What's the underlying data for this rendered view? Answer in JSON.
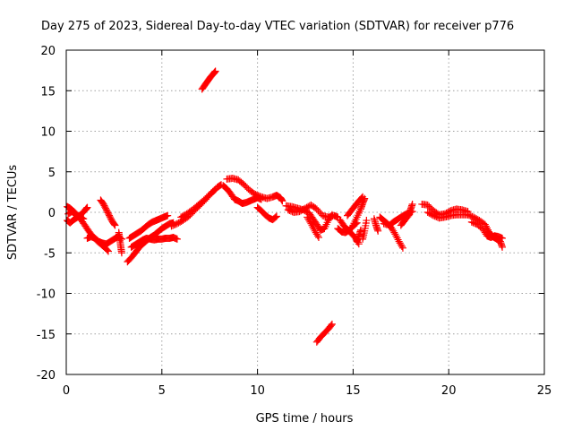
{
  "chart_data": {
    "type": "scatter",
    "title": "Day 275 of 2023, Sidereal Day-to-day VTEC variation (SDTVAR) for receiver p776",
    "xlabel": "GPS time / hours",
    "ylabel": "SDTVAR / TECUs",
    "xlim": [
      0,
      25
    ],
    "ylim": [
      -20,
      20
    ],
    "xticks": [
      0,
      5,
      10,
      15,
      20,
      25
    ],
    "yticks": [
      -20,
      -15,
      -10,
      -5,
      0,
      5,
      10,
      15,
      20
    ],
    "xtick_labels": [
      "0",
      "5",
      "10",
      "15",
      "20",
      "25"
    ],
    "ytick_labels": [
      "-20",
      "-15",
      "-10",
      "-5",
      "0",
      "5",
      "10",
      "15",
      "20"
    ],
    "grid": true,
    "marker": "plus",
    "color": "#ff0000",
    "series": [
      {
        "name": "arc-1",
        "points": [
          [
            0.05,
            0.7
          ],
          [
            0.2,
            0.5
          ],
          [
            0.4,
            0.1
          ],
          [
            0.6,
            -0.4
          ],
          [
            0.8,
            -1.0
          ],
          [
            1.0,
            -1.7
          ],
          [
            1.2,
            -2.4
          ],
          [
            1.4,
            -3.0
          ],
          [
            1.6,
            -3.5
          ],
          [
            1.8,
            -3.9
          ],
          [
            2.0,
            -4.3
          ],
          [
            2.2,
            -4.8
          ]
        ]
      },
      {
        "name": "arc-2",
        "points": [
          [
            0.05,
            -1.0
          ],
          [
            0.2,
            -1.3
          ],
          [
            0.4,
            -0.9
          ],
          [
            0.6,
            -0.6
          ],
          [
            0.8,
            -0.2
          ],
          [
            1.0,
            0.3
          ],
          [
            1.1,
            0.6
          ]
        ]
      },
      {
        "name": "arc-3",
        "points": [
          [
            0.1,
            -0.2
          ],
          [
            0.3,
            0.1
          ],
          [
            0.5,
            -0.3
          ],
          [
            0.7,
            -0.5
          ],
          [
            0.9,
            -0.8
          ]
        ]
      },
      {
        "name": "arc-4",
        "points": [
          [
            1.1,
            -3.2
          ],
          [
            1.3,
            -3.0
          ],
          [
            1.5,
            -3.2
          ],
          [
            1.7,
            -3.6
          ],
          [
            1.9,
            -3.8
          ],
          [
            2.1,
            -3.9
          ],
          [
            2.3,
            -3.6
          ],
          [
            2.5,
            -3.3
          ],
          [
            2.7,
            -3.0
          ],
          [
            2.9,
            -3.3
          ]
        ]
      },
      {
        "name": "arc-5",
        "points": [
          [
            1.8,
            1.5
          ],
          [
            1.95,
            1.0
          ],
          [
            2.1,
            0.3
          ],
          [
            2.25,
            -0.4
          ],
          [
            2.4,
            -1.1
          ],
          [
            2.55,
            -1.6
          ]
        ]
      },
      {
        "name": "arc-6",
        "points": [
          [
            2.75,
            -2.5
          ],
          [
            2.8,
            -3.3
          ],
          [
            2.85,
            -4.2
          ],
          [
            2.9,
            -5.0
          ]
        ]
      },
      {
        "name": "arc-7",
        "points": [
          [
            3.2,
            -6.1
          ],
          [
            3.4,
            -5.6
          ],
          [
            3.6,
            -5.0
          ],
          [
            3.8,
            -4.4
          ],
          [
            4.0,
            -3.9
          ],
          [
            4.2,
            -3.5
          ],
          [
            4.4,
            -3.1
          ],
          [
            4.6,
            -2.8
          ],
          [
            4.8,
            -2.4
          ],
          [
            5.0,
            -2.0
          ],
          [
            5.2,
            -1.7
          ],
          [
            5.4,
            -1.4
          ],
          [
            5.6,
            -1.3
          ]
        ]
      },
      {
        "name": "arc-8",
        "points": [
          [
            3.3,
            -3.2
          ],
          [
            3.5,
            -2.9
          ],
          [
            3.7,
            -2.6
          ],
          [
            3.9,
            -2.3
          ],
          [
            4.1,
            -1.9
          ],
          [
            4.3,
            -1.5
          ],
          [
            4.5,
            -1.2
          ],
          [
            4.7,
            -1.0
          ],
          [
            4.9,
            -0.8
          ],
          [
            5.1,
            -0.6
          ],
          [
            5.3,
            -0.4
          ]
        ]
      },
      {
        "name": "arc-9",
        "points": [
          [
            3.4,
            -4.3
          ],
          [
            3.6,
            -4.0
          ],
          [
            3.8,
            -3.7
          ],
          [
            4.0,
            -3.4
          ],
          [
            4.2,
            -3.2
          ],
          [
            4.4,
            -3.3
          ],
          [
            4.6,
            -3.4
          ],
          [
            4.8,
            -3.3
          ],
          [
            5.0,
            -3.3
          ],
          [
            5.2,
            -3.2
          ],
          [
            5.4,
            -3.2
          ],
          [
            5.6,
            -3.1
          ],
          [
            5.8,
            -3.3
          ]
        ]
      },
      {
        "name": "arc-10",
        "points": [
          [
            5.5,
            -1.7
          ],
          [
            5.8,
            -1.4
          ],
          [
            6.1,
            -1.0
          ],
          [
            6.4,
            -0.5
          ],
          [
            6.7,
            0.2
          ],
          [
            7.0,
            0.9
          ],
          [
            7.3,
            1.6
          ],
          [
            7.6,
            2.4
          ],
          [
            7.9,
            3.1
          ],
          [
            8.1,
            3.4
          ]
        ]
      },
      {
        "name": "arc-11",
        "points": [
          [
            6.0,
            -0.6
          ],
          [
            6.3,
            -0.2
          ],
          [
            6.6,
            0.3
          ],
          [
            6.9,
            0.9
          ],
          [
            7.2,
            1.5
          ],
          [
            7.5,
            2.2
          ],
          [
            7.8,
            2.8
          ]
        ]
      },
      {
        "name": "arc-12",
        "points": [
          [
            8.2,
            3.3
          ],
          [
            8.4,
            2.9
          ],
          [
            8.6,
            2.3
          ],
          [
            8.8,
            1.6
          ],
          [
            9.0,
            1.4
          ],
          [
            9.2,
            1.1
          ],
          [
            9.4,
            1.2
          ],
          [
            9.6,
            1.4
          ],
          [
            9.8,
            1.6
          ],
          [
            10.0,
            1.8
          ],
          [
            10.2,
            1.6
          ]
        ]
      },
      {
        "name": "arc-13",
        "points": [
          [
            8.4,
            4.1
          ],
          [
            8.7,
            4.2
          ],
          [
            9.0,
            4.0
          ],
          [
            9.3,
            3.4
          ],
          [
            9.6,
            2.7
          ],
          [
            9.9,
            2.2
          ],
          [
            10.2,
            1.9
          ],
          [
            10.5,
            1.7
          ],
          [
            10.8,
            1.9
          ],
          [
            11.0,
            2.1
          ],
          [
            11.2,
            1.8
          ],
          [
            11.3,
            1.4
          ]
        ]
      },
      {
        "name": "arc-14",
        "points": [
          [
            10.0,
            0.6
          ],
          [
            10.2,
            0.2
          ],
          [
            10.4,
            -0.3
          ],
          [
            10.6,
            -0.7
          ],
          [
            10.8,
            -0.9
          ],
          [
            11.0,
            -0.5
          ]
        ]
      },
      {
        "name": "arc-15",
        "points": [
          [
            11.5,
            0.8
          ],
          [
            11.8,
            0.7
          ],
          [
            12.1,
            0.5
          ],
          [
            12.4,
            0.3
          ],
          [
            12.7,
            -0.1
          ],
          [
            12.9,
            -0.8
          ],
          [
            13.1,
            -1.5
          ],
          [
            13.3,
            -2.2
          ],
          [
            13.5,
            -2.0
          ],
          [
            13.7,
            -1.0
          ],
          [
            13.9,
            -0.3
          ]
        ]
      },
      {
        "name": "arc-16",
        "points": [
          [
            11.6,
            0.3
          ],
          [
            11.9,
            0.0
          ],
          [
            12.2,
            0.1
          ],
          [
            12.5,
            0.5
          ],
          [
            12.8,
            0.9
          ],
          [
            13.1,
            0.4
          ],
          [
            13.4,
            -0.4
          ],
          [
            13.7,
            -0.6
          ],
          [
            14.0,
            -0.4
          ],
          [
            14.2,
            -0.6
          ]
        ]
      },
      {
        "name": "arc-17",
        "points": [
          [
            12.6,
            -0.6
          ],
          [
            12.8,
            -1.4
          ],
          [
            13.0,
            -2.3
          ],
          [
            13.2,
            -3.1
          ]
        ]
      },
      {
        "name": "arc-18",
        "points": [
          [
            14.3,
            -0.9
          ],
          [
            14.5,
            -1.6
          ],
          [
            14.7,
            -2.1
          ],
          [
            14.9,
            -2.6
          ],
          [
            15.1,
            -3.1
          ],
          [
            15.3,
            -3.9
          ]
        ]
      },
      {
        "name": "arc-19",
        "points": [
          [
            14.2,
            -2.0
          ],
          [
            14.4,
            -2.4
          ],
          [
            14.6,
            -2.5
          ],
          [
            14.8,
            -2.2
          ],
          [
            15.0,
            -1.7
          ],
          [
            15.2,
            -1.3
          ]
        ]
      },
      {
        "name": "arc-20",
        "points": [
          [
            15.0,
            -1.6
          ],
          [
            15.2,
            -0.6
          ],
          [
            15.4,
            0.4
          ],
          [
            15.5,
            1.1
          ],
          [
            15.6,
            1.7
          ]
        ]
      },
      {
        "name": "arc-21",
        "points": [
          [
            14.7,
            -0.4
          ],
          [
            14.9,
            0.2
          ],
          [
            15.1,
            0.8
          ],
          [
            15.3,
            1.4
          ],
          [
            15.5,
            1.9
          ]
        ]
      },
      {
        "name": "arc-22",
        "points": [
          [
            15.5,
            -3.3
          ],
          [
            15.6,
            -2.3
          ],
          [
            15.7,
            -1.0
          ]
        ]
      },
      {
        "name": "arc-23",
        "points": [
          [
            15.2,
            -3.6
          ],
          [
            15.3,
            -2.9
          ],
          [
            15.4,
            -2.2
          ]
        ]
      },
      {
        "name": "arc-24",
        "points": [
          [
            16.1,
            -0.8
          ],
          [
            16.2,
            -1.6
          ],
          [
            16.3,
            -2.3
          ]
        ]
      },
      {
        "name": "arc-25",
        "points": [
          [
            16.4,
            -0.6
          ],
          [
            16.6,
            -1.0
          ],
          [
            16.8,
            -1.4
          ],
          [
            17.0,
            -1.9
          ],
          [
            17.2,
            -2.7
          ],
          [
            17.4,
            -3.6
          ],
          [
            17.6,
            -4.4
          ]
        ]
      },
      {
        "name": "arc-26",
        "points": [
          [
            16.6,
            -1.4
          ],
          [
            16.9,
            -1.6
          ],
          [
            17.1,
            -1.2
          ],
          [
            17.3,
            -0.9
          ],
          [
            17.5,
            -0.6
          ],
          [
            17.7,
            -0.3
          ],
          [
            17.9,
            -0.1
          ],
          [
            18.1,
            0.1
          ]
        ]
      },
      {
        "name": "arc-27",
        "points": [
          [
            17.5,
            -1.6
          ],
          [
            17.7,
            -1.0
          ],
          [
            17.9,
            -0.4
          ],
          [
            18.0,
            0.3
          ],
          [
            18.1,
            1.0
          ]
        ]
      },
      {
        "name": "arc-28",
        "points": [
          [
            18.6,
            1.0
          ],
          [
            18.9,
            0.9
          ],
          [
            19.2,
            0.2
          ],
          [
            19.5,
            -0.3
          ],
          [
            19.8,
            -0.2
          ],
          [
            20.1,
            0.2
          ],
          [
            20.4,
            0.4
          ],
          [
            20.7,
            0.3
          ],
          [
            21.0,
            0.1
          ]
        ]
      },
      {
        "name": "arc-29",
        "points": [
          [
            18.9,
            0.0
          ],
          [
            19.2,
            -0.4
          ],
          [
            19.5,
            -0.7
          ],
          [
            19.8,
            -0.6
          ],
          [
            20.1,
            -0.4
          ],
          [
            20.4,
            -0.3
          ],
          [
            20.7,
            -0.3
          ],
          [
            21.0,
            -0.3
          ]
        ]
      },
      {
        "name": "arc-30",
        "points": [
          [
            21.0,
            -0.3
          ],
          [
            21.3,
            -0.6
          ],
          [
            21.6,
            -1.0
          ],
          [
            21.9,
            -1.5
          ],
          [
            22.1,
            -2.4
          ],
          [
            22.3,
            -3.0
          ],
          [
            22.5,
            -3.3
          ],
          [
            22.7,
            -3.6
          ],
          [
            22.8,
            -4.3
          ]
        ]
      },
      {
        "name": "arc-31",
        "points": [
          [
            21.2,
            -1.2
          ],
          [
            21.5,
            -1.5
          ],
          [
            21.8,
            -2.1
          ],
          [
            22.0,
            -2.9
          ],
          [
            22.2,
            -3.1
          ],
          [
            22.4,
            -2.9
          ],
          [
            22.6,
            -3.0
          ],
          [
            22.8,
            -3.2
          ]
        ]
      },
      {
        "name": "arc-32",
        "points": [
          [
            7.1,
            15.2
          ],
          [
            7.25,
            15.7
          ],
          [
            7.4,
            16.2
          ],
          [
            7.55,
            16.7
          ],
          [
            7.7,
            17.1
          ],
          [
            7.8,
            17.4
          ]
        ]
      },
      {
        "name": "arc-33",
        "points": [
          [
            13.1,
            -16.0
          ],
          [
            13.3,
            -15.4
          ],
          [
            13.5,
            -14.9
          ],
          [
            13.7,
            -14.4
          ],
          [
            13.9,
            -13.8
          ]
        ]
      }
    ]
  }
}
